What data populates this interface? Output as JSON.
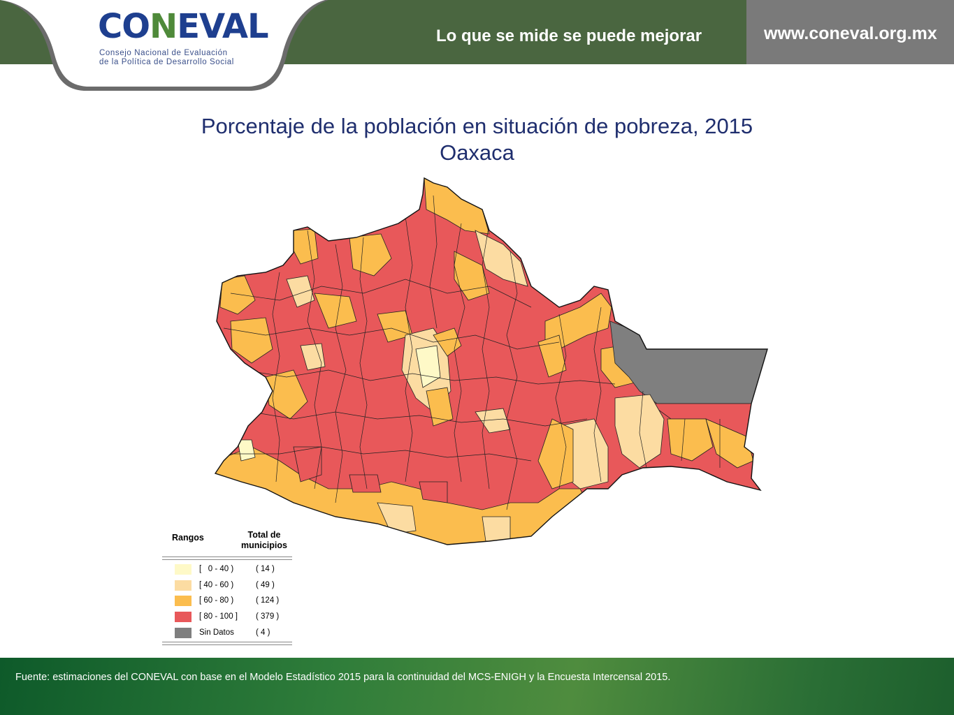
{
  "header": {
    "logo_text_a": "CO",
    "logo_text_l": "N",
    "logo_text_b": "EVAL",
    "logo_subtitle_line1": "Consejo Nacional de Evaluación",
    "logo_subtitle_line2": "de la Política de Desarrollo Social",
    "slogan": "Lo que se mide se puede mejorar",
    "url": "www.coneval.org.mx"
  },
  "title": {
    "line1": "Porcentaje de la población en situación de pobreza, 2015",
    "line2": "Oaxaca"
  },
  "legend": {
    "header_ranges": "Rangos",
    "header_total": "Total de municipios",
    "items": [
      {
        "range": "[   0 - 40 )",
        "count": "( 14 )",
        "color": "#fef9c7"
      },
      {
        "range": "[ 40 - 60 )",
        "count": "( 49 )",
        "color": "#fcdca2"
      },
      {
        "range": "[ 60 - 80 )",
        "count": "( 124 )",
        "color": "#fbbd4e"
      },
      {
        "range": "[ 80 - 100 ]",
        "count": "( 379 )",
        "color": "#e8585a"
      },
      {
        "range": "Sin Datos",
        "count": "( 4 )",
        "color": "#7f7f7f"
      }
    ]
  },
  "map": {
    "colors": {
      "very_low": "#fef9c7",
      "low": "#fcdca2",
      "medium": "#fbbd4e",
      "high": "#e8585a",
      "no_data": "#7f7f7f",
      "border": "#222222"
    }
  },
  "footer": {
    "source": "Fuente: estimaciones del CONEVAL con base en el Modelo Estadístico 2015 para la continuidad del MCS-ENIGH y la Encuesta Intercensal 2015."
  }
}
